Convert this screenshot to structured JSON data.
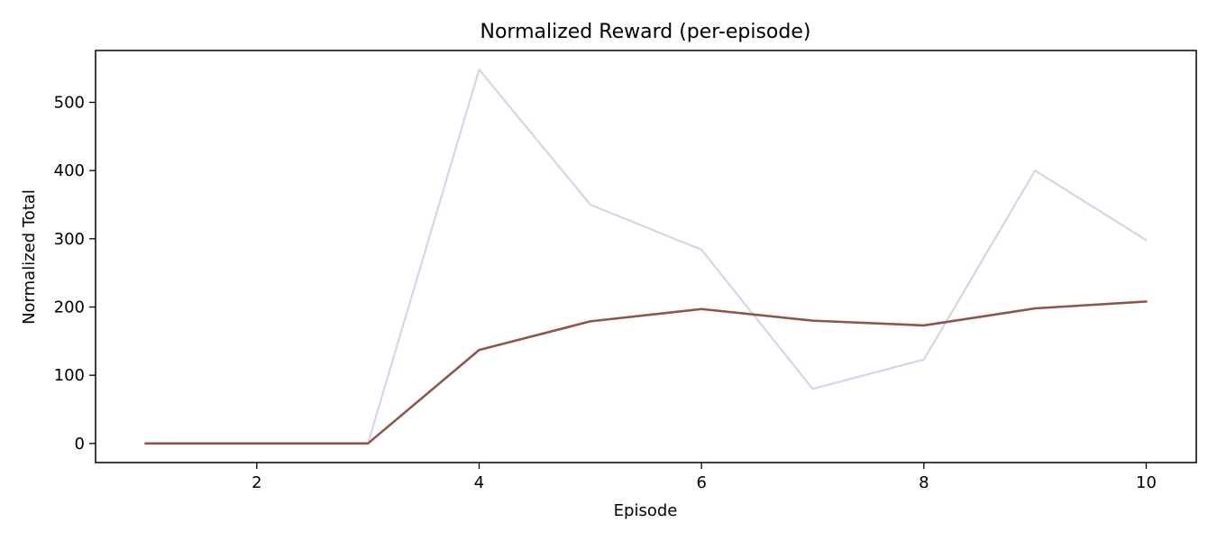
{
  "chart_data": {
    "type": "line",
    "title": "Normalized Reward (per-episode)",
    "xlabel": "Episode",
    "ylabel": "Normalized Total",
    "xlim": [
      0.55,
      10.45
    ],
    "ylim": [
      -28,
      576
    ],
    "xticks": [
      2,
      4,
      6,
      8,
      10
    ],
    "yticks": [
      0,
      100,
      200,
      300,
      400,
      500
    ],
    "grid": false,
    "legend": "none",
    "x": [
      1,
      2,
      3,
      4,
      5,
      6,
      7,
      8,
      9,
      10
    ],
    "series": [
      {
        "color": "#dcd0ea",
        "values": [
          0,
          0,
          0,
          548,
          350,
          284,
          80,
          123,
          400,
          298
        ]
      },
      {
        "color": "#8c564b",
        "values": [
          0,
          0,
          0,
          137,
          179,
          197,
          180,
          173,
          198,
          208
        ]
      }
    ]
  }
}
